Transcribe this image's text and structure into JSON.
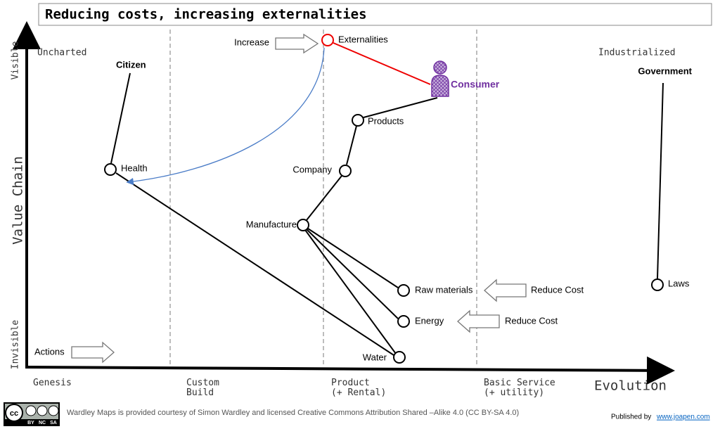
{
  "title": "Reducing costs, increasing externalities",
  "axes": {
    "y_label": "Value Chain",
    "top": "Visible",
    "bottom": "Invisible",
    "x_label": "Evolution"
  },
  "regions": {
    "left": "Uncharted",
    "right": "Industrialized"
  },
  "stages": [
    [
      "Genesis"
    ],
    [
      "Custom",
      "Build"
    ],
    [
      "Product",
      "(+ Rental)"
    ],
    [
      "Basic Service",
      "(+ utility)"
    ]
  ],
  "nodes": {
    "citizen": "Citizen",
    "health": "Health",
    "externalities": "Externalities",
    "consumer": "Consumer",
    "products": "Products",
    "company": "Company",
    "manufacture": "Manufacture",
    "raw_materials": "Raw materials",
    "energy": "Energy",
    "water": "Water",
    "government": "Government",
    "laws": "Laws"
  },
  "annotations": {
    "increase": "Increase",
    "actions": "Actions",
    "reduce_cost_1": "Reduce Cost",
    "reduce_cost_2": "Reduce Cost"
  },
  "footer": {
    "cc": "cc",
    "cc_labels": [
      "BY",
      "NC",
      "SA"
    ],
    "license": "Wardley Maps is provided courtesy of Simon Wardley and licensed  Creative Commons Attribution Shared –Alike 4.0 (CC BY-SA 4.0)",
    "published_by": "Published by",
    "link": "www.joapen.com"
  }
}
